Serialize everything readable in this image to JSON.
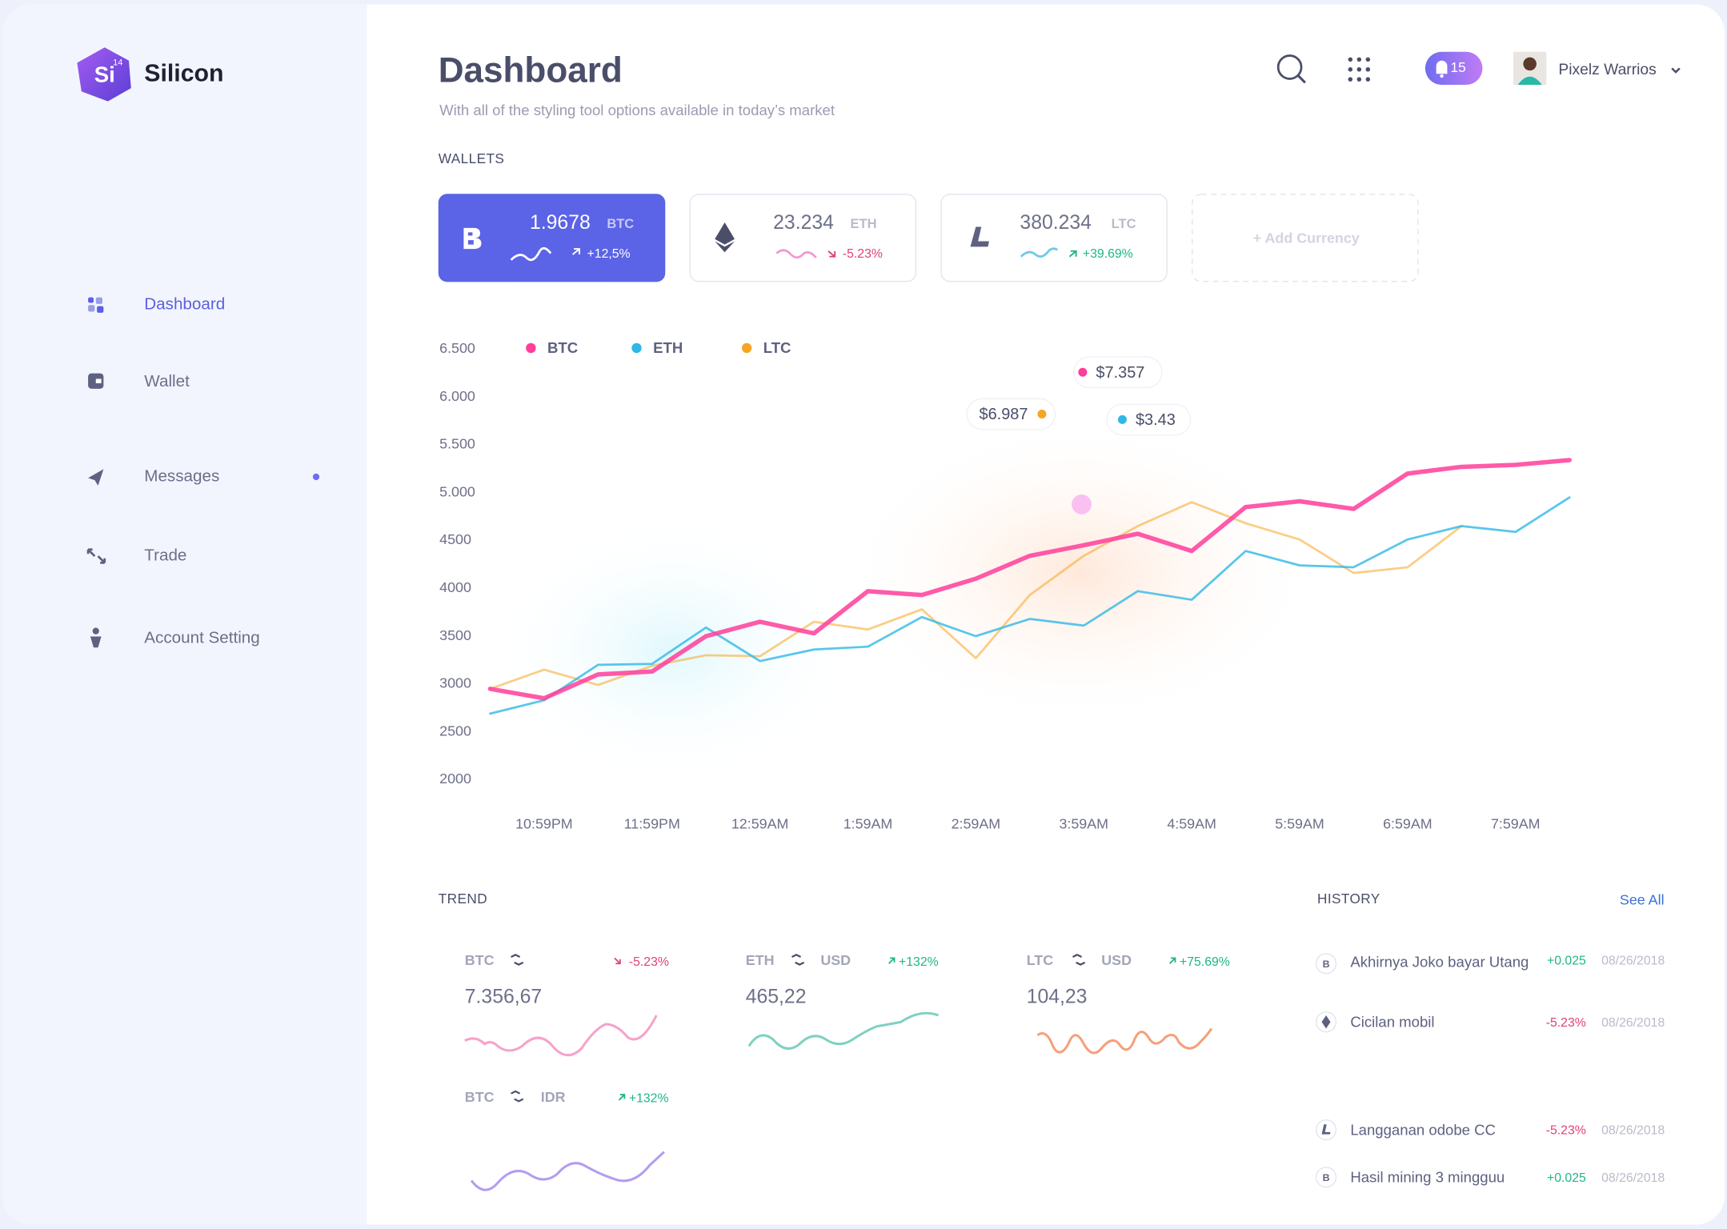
{
  "brand": {
    "logo": "Si",
    "logo_sup": "14",
    "name": "Silicon"
  },
  "nav": [
    {
      "label": "Dashboard"
    },
    {
      "label": "Wallet"
    },
    {
      "label": "Messages"
    },
    {
      "label": "Trade"
    },
    {
      "label": "Account Setting"
    }
  ],
  "header": {
    "title": "Dashboard",
    "subtitle": "With all of the styling tool options available in today’s market",
    "notifications": "15",
    "user": "Pixelz Warrios"
  },
  "wallets": {
    "label": "WALLETS",
    "items": [
      {
        "amount": "1.9678",
        "unit": "BTC",
        "change": "+12,5%"
      },
      {
        "amount": "23.234",
        "unit": "ETH",
        "change": "-5.23%"
      },
      {
        "amount": "380.234",
        "unit": "LTC",
        "change": "+39.69%"
      }
    ],
    "add": "+ Add Currency"
  },
  "chart_data": {
    "type": "line",
    "categories": [
      null,
      "10:59PM",
      null,
      "11:59PM",
      null,
      "12:59AM",
      null,
      "1:59AM",
      null,
      "2:59AM",
      null,
      "3:59AM",
      null,
      "4:59AM",
      null,
      "5:59AM",
      null,
      "6:59AM",
      null,
      "7:59AM",
      null
    ],
    "series": [
      {
        "name": "BTC",
        "color": "#ff3d9a",
        "values": [
          2950,
          2850,
          3100,
          3130,
          3500,
          3650,
          3530,
          3970,
          3930,
          4100,
          4340,
          4450,
          4570,
          4390,
          4850,
          4910,
          4830,
          5200,
          5270,
          5290,
          5340
        ]
      },
      {
        "name": "ETH",
        "color": "#2fb8e6",
        "values": [
          2690,
          2830,
          3200,
          3210,
          3590,
          3240,
          3360,
          3390,
          3700,
          3500,
          3680,
          3610,
          3970,
          3880,
          4390,
          4240,
          4220,
          4510,
          4650,
          4590,
          4950
        ]
      },
      {
        "name": "LTC",
        "color": "#f5a623",
        "values": [
          2950,
          3150,
          2990,
          3190,
          3300,
          3290,
          3650,
          3570,
          3780,
          3270,
          3930,
          4340,
          4650,
          4900,
          4680,
          4510,
          4160,
          4220,
          4650,
          null,
          null
        ]
      }
    ],
    "ylim": [
      2000,
      6500
    ],
    "yticks": [
      2000,
      2500,
      3000,
      3500,
      4000,
      4500,
      {
        "value": 5000,
        "label": "5.000"
      },
      {
        "value": 5500,
        "label": "5.500"
      },
      {
        "value": 6000,
        "label": "6.000"
      },
      {
        "value": 6500,
        "label": "6.500"
      }
    ],
    "annotations": [
      "$7.357",
      "$6.987",
      "$3.43"
    ],
    "legend": "top-left"
  },
  "trend": {
    "label": "TREND",
    "items": [
      {
        "base": "BTC",
        "change": "-5.23%",
        "value": "7.356,67"
      },
      {
        "base": "ETH",
        "quote": "USD",
        "change": "+132%",
        "value": "465,22"
      },
      {
        "base": "LTC",
        "quote": "USD",
        "change": "+75.69%",
        "value": "104,23"
      },
      {
        "base": "BTC",
        "quote": "IDR",
        "change": "+132%"
      }
    ]
  },
  "history": {
    "label": "HISTORY",
    "see_all": "See All",
    "items": [
      {
        "title": "Akhirnya Joko bayar Utang",
        "amount": "+0.025",
        "date": "08/26/2018"
      },
      {
        "title": "Cicilan mobil",
        "amount": "-5.23%",
        "date": "08/26/2018"
      },
      {
        "title": "Langganan odobe CC",
        "amount": "-5.23%",
        "date": "08/26/2018"
      },
      {
        "title": "Hasil mining 3 mingguu",
        "amount": "+0.025",
        "date": "08/26/2018"
      }
    ]
  }
}
